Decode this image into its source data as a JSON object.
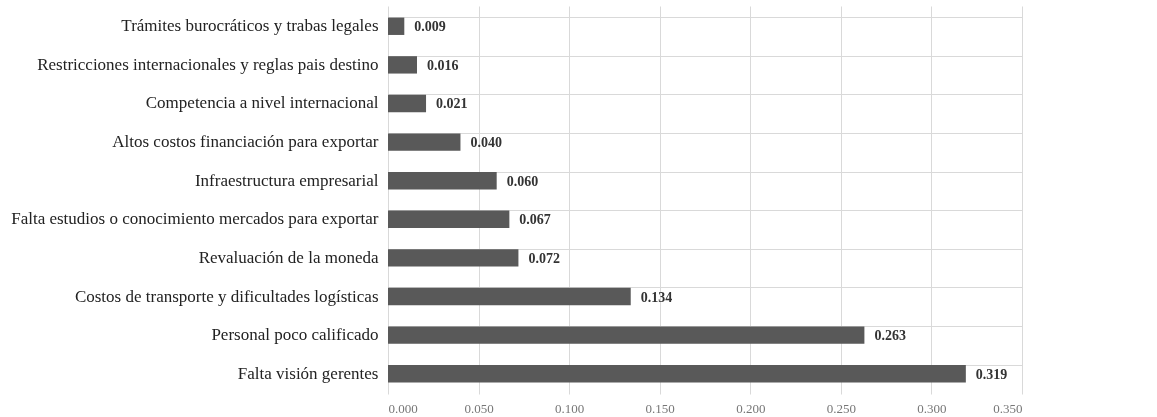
{
  "chart_data": {
    "type": "bar",
    "orientation": "horizontal",
    "categories": [
      "Trámites burocráticos y trabas legales",
      "Restricciones internacionales y reglas pais destino",
      "Competencia a nivel internacional",
      "Altos costos financiación para exportar",
      "Infraestructura empresarial",
      "Falta estudios o conocimiento mercados para exportar",
      "Revaluación de la moneda",
      "Costos de transporte y dificultades logísticas",
      "Personal poco calificado",
      "Falta visión gerentes"
    ],
    "values": [
      0.009,
      0.016,
      0.021,
      0.04,
      0.06,
      0.067,
      0.072,
      0.134,
      0.263,
      0.319
    ],
    "value_labels": [
      "0.009",
      "0.016",
      "0.021",
      "0.040",
      "0.060",
      "0.067",
      "0.072",
      "0.134",
      "0.263",
      "0.319"
    ],
    "color": "#595959",
    "xlim": [
      0,
      0.35
    ],
    "xticks": [
      {
        "value": 0,
        "label": "0.000"
      },
      {
        "value": 0.05,
        "label": "0.050"
      },
      {
        "value": 0.1,
        "label": "0.100"
      },
      {
        "value": 0.15,
        "label": "0.150"
      },
      {
        "value": 0.2,
        "label": "0.200"
      },
      {
        "value": 0.25,
        "label": "0.250"
      },
      {
        "value": 0.3,
        "label": "0.300"
      },
      {
        "value": 0.35,
        "label": "0.350"
      }
    ],
    "grid": true
  }
}
